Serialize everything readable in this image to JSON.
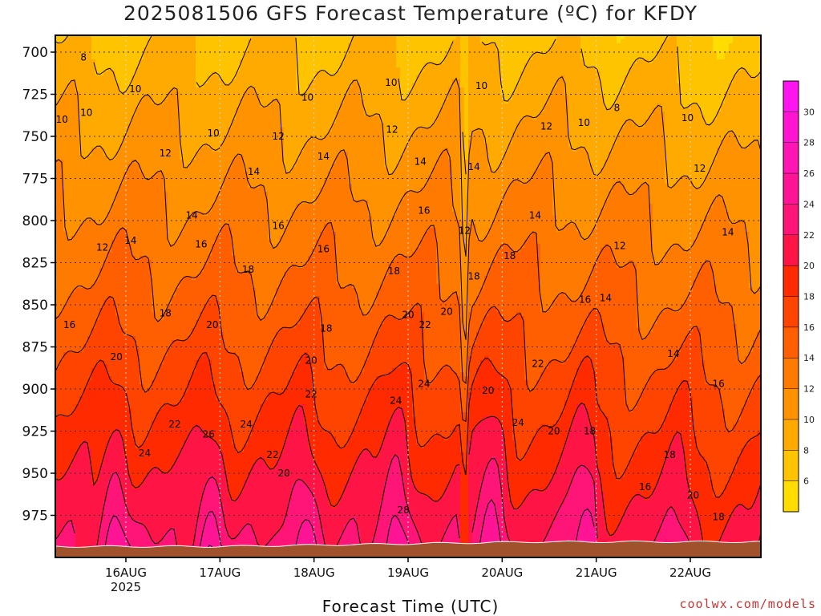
{
  "chart_data": {
    "type": "heatmap",
    "title": "2025081506 GFS Forecast Temperature (ºC) for KFDY",
    "xlabel": "Forecast Time (UTC)",
    "ylabel": "",
    "credit": "coolwx.com/models",
    "y_ticks": [
      "700",
      "725",
      "750",
      "775",
      "800",
      "825",
      "850",
      "875",
      "900",
      "925",
      "950",
      "975"
    ],
    "y_range": [
      690,
      1000
    ],
    "y_inverted": true,
    "x_ticks": [
      {
        "day": 0,
        "label": "16AUG",
        "sub": "2025"
      },
      {
        "day": 1,
        "label": "17AUG",
        "sub": ""
      },
      {
        "day": 2,
        "label": "18AUG",
        "sub": ""
      },
      {
        "day": 3,
        "label": "19AUG",
        "sub": ""
      },
      {
        "day": 4,
        "label": "20AUG",
        "sub": ""
      },
      {
        "day": 5,
        "label": "21AUG",
        "sub": ""
      },
      {
        "day": 6,
        "label": "22AUG",
        "sub": ""
      }
    ],
    "x_range_days": [
      -0.75,
      6.75
    ],
    "colorbar": {
      "levels": [
        4,
        6,
        8,
        10,
        12,
        14,
        16,
        18,
        20,
        22,
        24,
        26,
        28,
        30,
        32
      ],
      "labels": [
        "6",
        "8",
        "10",
        "12",
        "14",
        "16",
        "18",
        "20",
        "22",
        "24",
        "26",
        "28",
        "30"
      ],
      "colors": [
        "#ffdd00",
        "#ffc400",
        "#ffaa00",
        "#ff9200",
        "#ff7a00",
        "#ff5f00",
        "#ff4400",
        "#ff2a00",
        "#ff1446",
        "#ff1478",
        "#ff1496",
        "#ff14b4",
        "#ff14d2",
        "#ff14f0"
      ]
    },
    "contour_labels": [
      {
        "value": 8,
        "day": -0.45,
        "p": 703
      },
      {
        "value": 8,
        "day": 5.22,
        "p": 733
      },
      {
        "value": 10,
        "day": -0.68,
        "p": 740
      },
      {
        "value": 10,
        "day": -0.42,
        "p": 736
      },
      {
        "value": 10,
        "day": 0.1,
        "p": 722
      },
      {
        "value": 10,
        "day": 0.93,
        "p": 748
      },
      {
        "value": 10,
        "day": 1.93,
        "p": 727
      },
      {
        "value": 10,
        "day": 2.82,
        "p": 718
      },
      {
        "value": 10,
        "day": 3.78,
        "p": 720
      },
      {
        "value": 10,
        "day": 4.87,
        "p": 742
      },
      {
        "value": 10,
        "day": 5.97,
        "p": 739
      },
      {
        "value": 12,
        "day": 0.42,
        "p": 760
      },
      {
        "value": 12,
        "day": 1.62,
        "p": 750
      },
      {
        "value": 12,
        "day": 2.83,
        "p": 746
      },
      {
        "value": 12,
        "day": 4.47,
        "p": 744
      },
      {
        "value": 12,
        "day": 6.1,
        "p": 769
      },
      {
        "value": 12,
        "day": -0.25,
        "p": 816
      },
      {
        "value": 12,
        "day": 3.6,
        "p": 806
      },
      {
        "value": 12,
        "day": 5.25,
        "p": 815
      },
      {
        "value": 14,
        "day": 0.7,
        "p": 797
      },
      {
        "value": 14,
        "day": 1.36,
        "p": 771
      },
      {
        "value": 14,
        "day": 2.1,
        "p": 762
      },
      {
        "value": 14,
        "day": 3.13,
        "p": 765
      },
      {
        "value": 14,
        "day": 3.7,
        "p": 768
      },
      {
        "value": 14,
        "day": 4.35,
        "p": 797
      },
      {
        "value": 14,
        "day": 0.05,
        "p": 812
      },
      {
        "value": 14,
        "day": 5.1,
        "p": 846
      },
      {
        "value": 14,
        "day": 5.82,
        "p": 879
      },
      {
        "value": 14,
        "day": 6.4,
        "p": 807
      },
      {
        "value": 16,
        "day": 0.8,
        "p": 814
      },
      {
        "value": 16,
        "day": 1.62,
        "p": 803
      },
      {
        "value": 16,
        "day": 2.1,
        "p": 817
      },
      {
        "value": 16,
        "day": 3.17,
        "p": 794
      },
      {
        "value": 16,
        "day": -0.6,
        "p": 862
      },
      {
        "value": 16,
        "day": 4.88,
        "p": 847
      },
      {
        "value": 16,
        "day": 6.3,
        "p": 897
      },
      {
        "value": 16,
        "day": 5.52,
        "p": 958
      },
      {
        "value": 18,
        "day": 1.3,
        "p": 829
      },
      {
        "value": 18,
        "day": 0.42,
        "p": 855
      },
      {
        "value": 18,
        "day": 2.13,
        "p": 864
      },
      {
        "value": 18,
        "day": 2.85,
        "p": 830
      },
      {
        "value": 18,
        "day": 3.7,
        "p": 833
      },
      {
        "value": 18,
        "day": 4.08,
        "p": 821
      },
      {
        "value": 18,
        "day": 4.93,
        "p": 925
      },
      {
        "value": 18,
        "day": 5.78,
        "p": 939
      },
      {
        "value": 18,
        "day": 6.3,
        "p": 976
      },
      {
        "value": 20,
        "day": -0.1,
        "p": 881
      },
      {
        "value": 20,
        "day": 0.92,
        "p": 862
      },
      {
        "value": 20,
        "day": 1.97,
        "p": 883
      },
      {
        "value": 20,
        "day": 3.0,
        "p": 856
      },
      {
        "value": 20,
        "day": 3.41,
        "p": 854
      },
      {
        "value": 20,
        "day": 3.85,
        "p": 901
      },
      {
        "value": 20,
        "day": 1.68,
        "p": 950
      },
      {
        "value": 20,
        "day": 4.55,
        "p": 925
      },
      {
        "value": 20,
        "day": 6.03,
        "p": 963
      },
      {
        "value": 22,
        "day": 0.52,
        "p": 921
      },
      {
        "value": 22,
        "day": 1.97,
        "p": 903
      },
      {
        "value": 22,
        "day": 3.18,
        "p": 862
      },
      {
        "value": 22,
        "day": 4.38,
        "p": 885
      },
      {
        "value": 22,
        "day": 1.56,
        "p": 939
      },
      {
        "value": 24,
        "day": 0.2,
        "p": 938
      },
      {
        "value": 24,
        "day": 1.28,
        "p": 921
      },
      {
        "value": 24,
        "day": 2.87,
        "p": 907
      },
      {
        "value": 24,
        "day": 3.17,
        "p": 897
      },
      {
        "value": 24,
        "day": 4.17,
        "p": 920
      },
      {
        "value": 26,
        "day": 0.88,
        "p": 927
      },
      {
        "value": 28,
        "day": 2.95,
        "p": 972
      }
    ]
  }
}
